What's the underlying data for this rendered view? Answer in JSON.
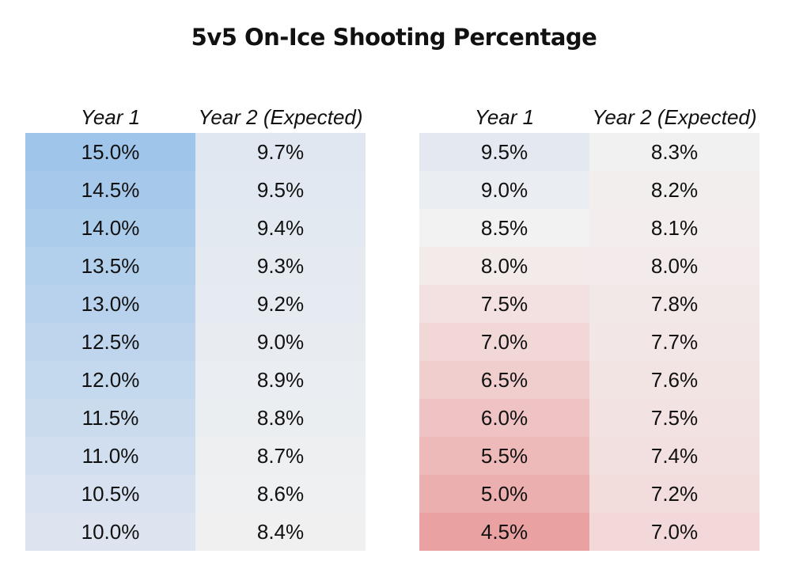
{
  "chart_data": {
    "type": "table",
    "title": "5v5 On-Ice Shooting Percentage",
    "tables": [
      {
        "columns": [
          "Year 1",
          "Year 2 (Expected)"
        ],
        "rows": [
          [
            "15.0%",
            "9.7%"
          ],
          [
            "14.5%",
            "9.5%"
          ],
          [
            "14.0%",
            "9.4%"
          ],
          [
            "13.5%",
            "9.3%"
          ],
          [
            "13.0%",
            "9.2%"
          ],
          [
            "12.5%",
            "9.0%"
          ],
          [
            "12.0%",
            "8.9%"
          ],
          [
            "11.5%",
            "8.8%"
          ],
          [
            "11.0%",
            "8.7%"
          ],
          [
            "10.5%",
            "8.6%"
          ],
          [
            "10.0%",
            "8.4%"
          ]
        ],
        "colors": [
          [
            "#a0c5ea",
            "#e0e7f1"
          ],
          [
            "#a6c8eb",
            "#e2e8f1"
          ],
          [
            "#acccec",
            "#e3e9f1"
          ],
          [
            "#b2cfec",
            "#e5eaf1"
          ],
          [
            "#b8d2ed",
            "#e6ebf1"
          ],
          [
            "#bed5ed",
            "#e8ecf1"
          ],
          [
            "#c4d8ee",
            "#eaedf1"
          ],
          [
            "#cadbee",
            "#ebeef1"
          ],
          [
            "#d0deef",
            "#edeff1"
          ],
          [
            "#d7e1ef",
            "#eef0f1"
          ],
          [
            "#dde4f0",
            "#f0f0f1"
          ]
        ]
      },
      {
        "columns": [
          "Year 1",
          "Year 2 (Expected)"
        ],
        "rows": [
          [
            "9.5%",
            "8.3%"
          ],
          [
            "9.0%",
            "8.2%"
          ],
          [
            "8.5%",
            "8.1%"
          ],
          [
            "8.0%",
            "8.0%"
          ],
          [
            "7.5%",
            "7.8%"
          ],
          [
            "7.0%",
            "7.7%"
          ],
          [
            "6.5%",
            "7.6%"
          ],
          [
            "6.0%",
            "7.5%"
          ],
          [
            "5.5%",
            "7.4%"
          ],
          [
            "5.0%",
            "7.2%"
          ],
          [
            "4.5%",
            "7.0%"
          ]
        ],
        "colors": [
          [
            "#e4e8f0",
            "#f1f1f1"
          ],
          [
            "#eaedf1",
            "#f2eeee"
          ],
          [
            "#f1f2f1",
            "#f3eded"
          ],
          [
            "#f3eaea",
            "#f3ebeb"
          ],
          [
            "#f3e1e1",
            "#f3e8e8"
          ],
          [
            "#f2d7d7",
            "#f3e6e6"
          ],
          [
            "#f1cece",
            "#f3e4e4"
          ],
          [
            "#efc3c3",
            "#f3e2e2"
          ],
          [
            "#eeb9b9",
            "#f2e0e0"
          ],
          [
            "#ecafaf",
            "#f2dcdc"
          ],
          [
            "#eaa1a1",
            "#f2d8d8"
          ]
        ]
      }
    ]
  }
}
